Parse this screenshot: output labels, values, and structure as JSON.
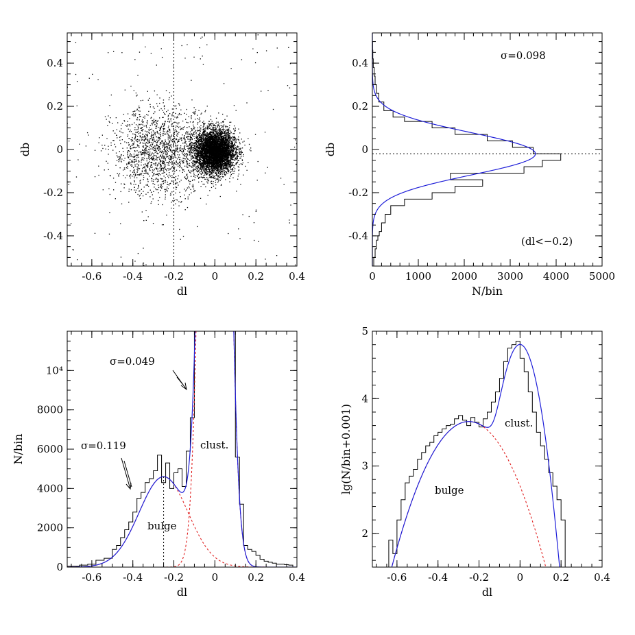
{
  "chart_data": [
    {
      "id": "scatter_dl_db",
      "type": "scatter",
      "xlabel": "dl",
      "ylabel": "db",
      "xlim": [
        -0.72,
        0.4
      ],
      "ylim": [
        -0.54,
        0.54
      ],
      "xticks": [
        "-0.6",
        "-0.4",
        "-0.2",
        "0",
        "0.2",
        "0.4"
      ],
      "yticks": [
        "-0.4",
        "-0.2",
        "0",
        "0.2",
        "0.4"
      ],
      "dense_cluster": {
        "center": [
          0.0,
          -0.01
        ],
        "sigma": [
          0.049,
          0.05
        ],
        "count": 5200
      },
      "diffuse_bulge": {
        "center": [
          -0.26,
          -0.01
        ],
        "sigma": [
          0.12,
          0.1
        ],
        "count": 1700
      },
      "field": {
        "count": 160
      },
      "cut_line_dl": -0.2
    },
    {
      "id": "hist_db",
      "type": "line",
      "orientation": "horizontal",
      "xlabel": "N/bin",
      "ylabel": "db",
      "xlim": [
        0,
        5000
      ],
      "ylim": [
        -0.54,
        0.54
      ],
      "xticks": [
        "0",
        "1000",
        "2000",
        "3000",
        "4000",
        "5000"
      ],
      "yticks": [
        "-0.4",
        "-0.2",
        "0",
        "0.2",
        "0.4"
      ],
      "annotations": [
        "σ=0.098",
        "(dl<−0.2)"
      ],
      "peak_db": -0.02,
      "histogram": {
        "db_edges": [
          -0.54,
          -0.5,
          -0.46,
          -0.42,
          -0.4,
          -0.38,
          -0.34,
          -0.3,
          -0.26,
          -0.23,
          -0.2,
          -0.17,
          -0.14,
          -0.11,
          -0.08,
          -0.05,
          -0.02,
          0.01,
          0.04,
          0.07,
          0.1,
          0.13,
          0.15,
          0.18,
          0.22,
          0.26,
          0.3,
          0.34,
          0.38,
          0.42,
          0.46,
          0.5
        ],
        "counts": [
          30,
          60,
          90,
          120,
          150,
          200,
          280,
          400,
          700,
          1300,
          1800,
          2400,
          1700,
          3300,
          3700,
          4100,
          3500,
          3050,
          2500,
          1800,
          1300,
          700,
          450,
          250,
          140,
          90,
          60,
          40,
          20,
          10,
          5
        ]
      },
      "gaussian_fit": {
        "amplitude": 3550,
        "mean": -0.02,
        "sigma": 0.098
      }
    },
    {
      "id": "hist_dl_linear",
      "type": "line",
      "xlabel": "dl",
      "ylabel": "N/bin",
      "xlim": [
        -0.72,
        0.4
      ],
      "ylim": [
        0,
        12000
      ],
      "xticks": [
        "-0.6",
        "-0.4",
        "-0.2",
        "0",
        "0.2",
        "0.4"
      ],
      "yticks": [
        "0",
        "2000",
        "4000",
        "6000",
        "8000",
        "10⁴"
      ],
      "annotations": {
        "sigma_bulge": "σ=0.119",
        "sigma_cluster": "σ=0.049",
        "cluster": "clust.",
        "bulge": "bulge"
      },
      "histogram": {
        "dl_edges": [
          -0.72,
          -0.66,
          -0.62,
          -0.58,
          -0.54,
          -0.5,
          -0.48,
          -0.46,
          -0.44,
          -0.42,
          -0.4,
          -0.38,
          -0.36,
          -0.34,
          -0.32,
          -0.3,
          -0.28,
          -0.26,
          -0.24,
          -0.22,
          -0.2,
          -0.18,
          -0.16,
          -0.14,
          -0.12,
          -0.1,
          0.1,
          0.12,
          0.14,
          0.16,
          0.18,
          0.2,
          0.22,
          0.24,
          0.26,
          0.28,
          0.3,
          0.32,
          0.34,
          0.36,
          0.38
        ],
        "counts": [
          50,
          100,
          150,
          350,
          450,
          900,
          1100,
          1500,
          1900,
          2300,
          2800,
          3500,
          3800,
          4300,
          4500,
          4900,
          5700,
          4300,
          5300,
          4000,
          4800,
          5000,
          4100,
          5900,
          7600,
          12000,
          5600,
          3200,
          1100,
          900,
          800,
          600,
          400,
          300,
          250,
          200,
          150,
          150,
          120,
          100
        ]
      },
      "fit_total": {
        "bulge": {
          "amplitude": 4600,
          "mean": -0.25,
          "sigma": 0.119
        },
        "cluster": {
          "amplitude": 70000,
          "mean": 0.0,
          "sigma": 0.049
        }
      },
      "bulge_peak_marker_dl": -0.25
    },
    {
      "id": "hist_dl_log",
      "type": "line",
      "xlabel": "dl",
      "ylabel": "lg(N/bin+0.001)",
      "xlim": [
        -0.72,
        0.4
      ],
      "ylim": [
        1.5,
        5
      ],
      "xticks": [
        "-0.6",
        "-0.4",
        "-0.2",
        "0",
        "0.2",
        "0.4"
      ],
      "yticks": [
        "2",
        "3",
        "4",
        "5"
      ],
      "annotations": {
        "cluster": "clust.",
        "bulge": "bulge"
      },
      "histogram": {
        "dl_edges": [
          -0.64,
          -0.62,
          -0.6,
          -0.58,
          -0.56,
          -0.54,
          -0.52,
          -0.5,
          -0.48,
          -0.46,
          -0.44,
          -0.42,
          -0.4,
          -0.38,
          -0.36,
          -0.34,
          -0.32,
          -0.3,
          -0.28,
          -0.26,
          -0.24,
          -0.22,
          -0.2,
          -0.18,
          -0.16,
          -0.14,
          -0.12,
          -0.1,
          -0.08,
          -0.06,
          -0.04,
          -0.02,
          0.0,
          0.02,
          0.04,
          0.06,
          0.08,
          0.1,
          0.12,
          0.14,
          0.16,
          0.18,
          0.2,
          0.22
        ],
        "counts_log": [
          1.9,
          1.7,
          2.2,
          2.5,
          2.75,
          2.85,
          2.95,
          3.1,
          3.2,
          3.3,
          3.35,
          3.45,
          3.5,
          3.55,
          3.6,
          3.62,
          3.7,
          3.75,
          3.68,
          3.6,
          3.72,
          3.65,
          3.58,
          3.7,
          3.8,
          3.95,
          4.1,
          4.3,
          4.55,
          4.75,
          4.8,
          4.85,
          4.6,
          4.4,
          4.1,
          3.8,
          3.5,
          3.3,
          3.1,
          2.9,
          2.7,
          2.5,
          2.2
        ]
      },
      "fit_total": {
        "bulge": {
          "logpeak": 3.66,
          "mean": -0.25,
          "sigma": 0.119
        },
        "cluster": {
          "logpeak": 4.8,
          "mean": 0.0,
          "sigma": 0.049
        }
      }
    }
  ]
}
